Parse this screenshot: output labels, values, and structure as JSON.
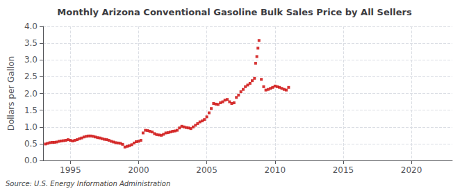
{
  "chart_data": {
    "type": "scatter",
    "title": "Monthly Arizona Conventional Gasoline Bulk Sales Price by All Sellers",
    "ylabel": "Dollars per Gallon",
    "annotation": "Source: U.S. Energy Information Administration",
    "x": [
      1993.17,
      1993.33,
      1993.5,
      1993.67,
      1993.83,
      1994.0,
      1994.17,
      1994.33,
      1994.5,
      1994.67,
      1994.83,
      1995.0,
      1995.17,
      1995.33,
      1995.5,
      1995.67,
      1995.83,
      1996.0,
      1996.17,
      1996.33,
      1996.5,
      1996.67,
      1996.83,
      1997.0,
      1997.17,
      1997.33,
      1997.5,
      1997.67,
      1997.83,
      1998.0,
      1998.17,
      1998.33,
      1998.5,
      1998.67,
      1998.83,
      1999.0,
      1999.17,
      1999.33,
      1999.5,
      1999.67,
      1999.83,
      2000.0,
      2000.17,
      2000.33,
      2000.5,
      2000.67,
      2000.83,
      2001.0,
      2001.17,
      2001.33,
      2001.5,
      2001.67,
      2001.83,
      2002.0,
      2002.17,
      2002.33,
      2002.5,
      2002.67,
      2002.83,
      2003.0,
      2003.17,
      2003.33,
      2003.5,
      2003.67,
      2003.83,
      2004.0,
      2004.17,
      2004.33,
      2004.5,
      2004.67,
      2004.83,
      2005.0,
      2005.17,
      2005.33,
      2005.5,
      2005.67,
      2005.83,
      2006.0,
      2006.17,
      2006.33,
      2006.5,
      2006.67,
      2006.83,
      2007.0,
      2007.17,
      2007.33,
      2007.5,
      2007.67,
      2007.83,
      2008.0,
      2008.17,
      2008.33,
      2008.5,
      2008.58,
      2008.67,
      2008.75,
      2008.83,
      2009.0,
      2009.17,
      2009.33,
      2009.5,
      2009.67,
      2009.83,
      2010.0,
      2010.17,
      2010.33,
      2010.5,
      2010.67,
      2010.83,
      2011.0
    ],
    "values": [
      0.49,
      0.51,
      0.53,
      0.54,
      0.54,
      0.55,
      0.57,
      0.58,
      0.59,
      0.6,
      0.62,
      0.6,
      0.58,
      0.6,
      0.62,
      0.65,
      0.67,
      0.7,
      0.72,
      0.73,
      0.73,
      0.72,
      0.7,
      0.68,
      0.67,
      0.65,
      0.63,
      0.62,
      0.6,
      0.57,
      0.55,
      0.53,
      0.52,
      0.51,
      0.48,
      0.4,
      0.42,
      0.44,
      0.47,
      0.52,
      0.56,
      0.57,
      0.6,
      0.82,
      0.9,
      0.89,
      0.87,
      0.85,
      0.8,
      0.77,
      0.76,
      0.75,
      0.78,
      0.82,
      0.83,
      0.85,
      0.87,
      0.88,
      0.9,
      0.97,
      1.02,
      1.0,
      0.98,
      0.97,
      0.95,
      1.0,
      1.05,
      1.1,
      1.15,
      1.18,
      1.22,
      1.3,
      1.42,
      1.55,
      1.7,
      1.68,
      1.67,
      1.72,
      1.75,
      1.8,
      1.82,
      1.75,
      1.7,
      1.72,
      1.88,
      1.95,
      2.05,
      2.12,
      2.2,
      2.25,
      2.3,
      2.38,
      2.45,
      2.9,
      3.1,
      3.35,
      3.58,
      2.42,
      2.2,
      2.1,
      2.12,
      2.15,
      2.18,
      2.22,
      2.2,
      2.18,
      2.15,
      2.12,
      2.1,
      2.18
    ],
    "color": "#cc0000",
    "marker": "square",
    "xlim": [
      1993.0,
      2023.0
    ],
    "ylim": [
      0.0,
      4.0
    ],
    "xticks": [
      1995,
      2000,
      2005,
      2010,
      2015,
      2020
    ],
    "yticks": [
      {
        "value": 0.0,
        "label": "0.0"
      },
      0.5,
      {
        "value": 1.0,
        "label": "1.0"
      },
      1.5,
      {
        "value": 2.0,
        "label": "2.0"
      },
      2.5,
      {
        "value": 3.0,
        "label": "3.0"
      },
      3.5,
      {
        "value": 4.0,
        "label": "4.0"
      }
    ],
    "grid": true
  }
}
